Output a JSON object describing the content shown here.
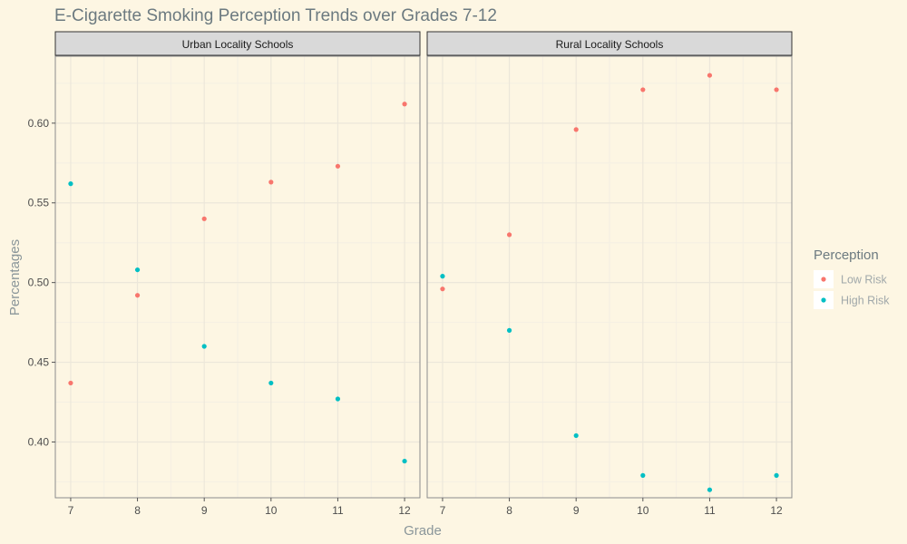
{
  "chart_data": {
    "type": "scatter",
    "title": "E-Cigarette Smoking Perception Trends over Grades 7-12",
    "xlabel": "Grade",
    "ylabel": "Percentages",
    "x_ticks": [
      7,
      8,
      9,
      10,
      11,
      12
    ],
    "y_ticks": [
      "0.40",
      "0.45",
      "0.50",
      "0.55",
      "0.60"
    ],
    "ylim": [
      0.365,
      0.642
    ],
    "xlim": [
      6.77,
      12.23
    ],
    "grid": true,
    "legend": {
      "title": "Perception",
      "placement": "right",
      "entries": [
        {
          "label": "Low Risk",
          "color": "#f8766d"
        },
        {
          "label": "High Risk",
          "color": "#00bfc4"
        }
      ]
    },
    "panels": [
      {
        "strip": "Urban Locality Schools",
        "series": [
          {
            "name": "Low Risk",
            "x": [
              7,
              8,
              9,
              10,
              11,
              12
            ],
            "y": [
              0.437,
              0.492,
              0.54,
              0.563,
              0.573,
              0.612
            ]
          },
          {
            "name": "High Risk",
            "x": [
              7,
              8,
              9,
              10,
              11,
              12
            ],
            "y": [
              0.562,
              0.508,
              0.46,
              0.437,
              0.427,
              0.388
            ]
          }
        ]
      },
      {
        "strip": "Rural Locality Schools",
        "series": [
          {
            "name": "Low Risk",
            "x": [
              7,
              8,
              9,
              10,
              11,
              12
            ],
            "y": [
              0.496,
              0.53,
              0.596,
              0.621,
              0.63,
              0.621
            ]
          },
          {
            "name": "High Risk",
            "x": [
              7,
              8,
              9,
              10,
              11,
              12
            ],
            "y": [
              0.504,
              0.47,
              0.404,
              0.379,
              0.37,
              0.379
            ]
          }
        ]
      }
    ]
  },
  "colors": {
    "background": "#fdf6e3",
    "grid_major": "#ece7da",
    "grid_minor": "#f4efe3",
    "strip_fill": "#d9d9d9",
    "low_risk": "#f8766d",
    "high_risk": "#00bfc4"
  }
}
